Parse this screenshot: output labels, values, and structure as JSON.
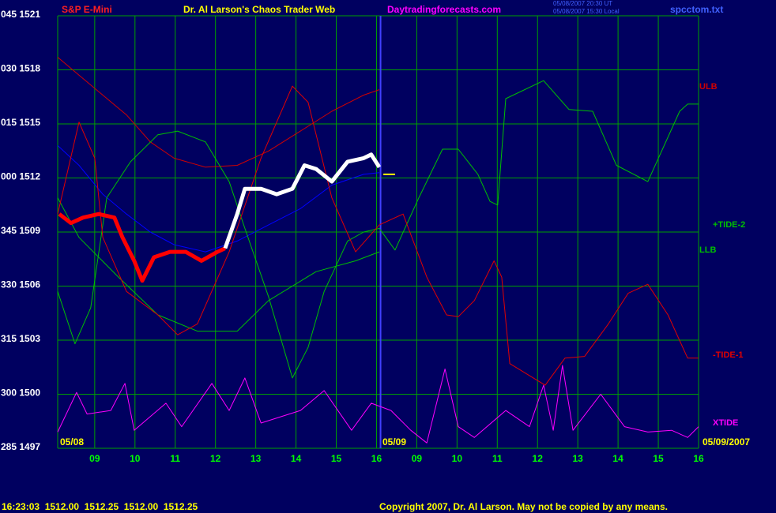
{
  "chart_data": {
    "type": "line",
    "symbol": "S&P E-Mini",
    "title": "Dr. Al Larson's Chaos Trader Web",
    "website": "Daytradingforecasts.com",
    "timestamps": [
      "05/08/2007 20:30 UT",
      "05/08/2007 15:30 Local"
    ],
    "file": "spcctom.txt",
    "status_line": "16:23:03  1512.00  1512.25  1512.00  1512.25",
    "copyright": "Copyright 2007, Dr. Al Larson. May not be copied by any means.",
    "date_labels": [
      "05/08",
      "05/09",
      "05/09/2007"
    ],
    "session_break": 16.1,
    "xlim": [
      8.08,
      24
    ],
    "xticks": [
      {
        "value": 9,
        "label": "09"
      },
      10,
      11,
      12,
      13,
      14,
      15,
      16,
      {
        "value": 17,
        "label": "09"
      },
      {
        "value": 18,
        "label": "10"
      },
      {
        "value": 19,
        "label": "11"
      },
      {
        "value": 20,
        "label": "12"
      },
      {
        "value": 21,
        "label": "13"
      },
      {
        "value": 22,
        "label": "14"
      },
      {
        "value": 23,
        "label": "15"
      },
      {
        "value": 24,
        "label": "16"
      }
    ],
    "ylim": [
      1497,
      1521
    ],
    "yticks": [
      {
        "value": 1521,
        "label": "045 1521"
      },
      {
        "value": 1518,
        "label": "030 1518"
      },
      {
        "value": 1515,
        "label": "015 1515"
      },
      {
        "value": 1512,
        "label": "000 1512"
      },
      {
        "value": 1509,
        "label": "345 1509"
      },
      {
        "value": 1506,
        "label": "330 1506"
      },
      {
        "value": 1503,
        "label": "315 1503"
      },
      {
        "value": 1500,
        "label": "300 1500"
      },
      {
        "value": 1497,
        "label": "285 1497"
      }
    ],
    "grid": true,
    "grid_color": "#00a000",
    "series": [
      {
        "name": "ULB",
        "color": "#d00000",
        "x": [
          8.08,
          8.61,
          9.2,
          9.79,
          10.38,
          10.97,
          11.75,
          12.54,
          13.32,
          14.11,
          14.89,
          15.68,
          16.07
        ],
        "values": [
          1518.7,
          1517.7,
          1516.6,
          1515.5,
          1514.0,
          1513.1,
          1512.6,
          1512.7,
          1513.5,
          1514.6,
          1515.7,
          1516.6,
          1516.9
        ]
      },
      {
        "color": "#0000ff",
        "x": [
          8.08,
          8.61,
          9.2,
          9.79,
          10.38,
          10.97,
          11.75,
          12.54,
          13.32,
          14.11,
          14.89,
          15.68,
          16.07
        ],
        "values": [
          1513.8,
          1512.7,
          1511.1,
          1510.0,
          1509.0,
          1508.3,
          1507.9,
          1508.5,
          1509.4,
          1510.3,
          1511.6,
          1512.2,
          1512.3
        ]
      },
      {
        "name": "LLB",
        "color": "#00c000",
        "x": [
          8.08,
          8.61,
          9.59,
          10.57,
          11.55,
          12.54,
          13.32,
          14.5,
          15.48,
          16.07
        ],
        "values": [
          1510.9,
          1508.7,
          1506.5,
          1504.4,
          1503.5,
          1503.5,
          1505.2,
          1506.8,
          1507.4,
          1507.9
        ]
      },
      {
        "name": "+TIDE-2",
        "color": "#00c000",
        "x": [
          8.08,
          8.51,
          8.9,
          9.3,
          9.89,
          10.57,
          11.06,
          11.75,
          12.34,
          12.73,
          13.32,
          13.91,
          14.3,
          14.7,
          15.28,
          15.68,
          16.07,
          16.46,
          17.05,
          17.64,
          18.03,
          18.52,
          18.82,
          19.01,
          19.21,
          20.15,
          20.78,
          21.37,
          21.96,
          22.74,
          23.53,
          23.73,
          24.0
        ],
        "values": [
          1505.7,
          1502.8,
          1504.8,
          1510.9,
          1512.9,
          1514.4,
          1514.6,
          1514.0,
          1511.8,
          1509.2,
          1505.4,
          1500.9,
          1502.6,
          1505.7,
          1508.5,
          1509.0,
          1509.2,
          1508.0,
          1510.9,
          1513.6,
          1513.6,
          1512.2,
          1510.7,
          1510.5,
          1516.4,
          1517.4,
          1515.8,
          1515.7,
          1512.7,
          1511.8,
          1515.7,
          1516.1,
          1516.1
        ]
      },
      {
        "name": "-TIDE-1",
        "color": "#e00000",
        "x": [
          8.08,
          8.61,
          9.0,
          9.2,
          9.79,
          10.57,
          11.06,
          11.55,
          12.34,
          13.13,
          13.91,
          14.3,
          14.89,
          15.48,
          16.07,
          16.66,
          17.25,
          17.74,
          18.03,
          18.43,
          18.92,
          19.11,
          19.31,
          20.19,
          20.68,
          21.17,
          21.76,
          22.25,
          22.74,
          23.24,
          23.73,
          24.0
        ],
        "values": [
          1510.0,
          1515.1,
          1513.1,
          1508.7,
          1505.7,
          1504.4,
          1503.3,
          1503.9,
          1507.9,
          1513.1,
          1517.1,
          1516.2,
          1510.9,
          1507.9,
          1509.4,
          1510.0,
          1506.5,
          1504.4,
          1504.3,
          1505.2,
          1507.4,
          1506.5,
          1501.7,
          1500.5,
          1502.0,
          1502.1,
          1503.9,
          1505.6,
          1506.1,
          1504.4,
          1502.0,
          1502.0
        ]
      },
      {
        "name": "XTIDE",
        "color": "#ff00ff",
        "x": [
          8.08,
          8.55,
          8.81,
          9.4,
          9.75,
          9.98,
          10.77,
          11.16,
          11.91,
          12.34,
          12.73,
          13.13,
          14.11,
          14.7,
          15.38,
          15.87,
          16.36,
          16.85,
          17.25,
          17.7,
          18.03,
          18.43,
          19.21,
          19.8,
          20.15,
          20.39,
          20.62,
          20.88,
          21.57,
          22.16,
          22.74,
          23.33,
          23.73,
          24.0
        ],
        "values": [
          1497.9,
          1500.1,
          1498.9,
          1499.1,
          1500.6,
          1498.0,
          1499.5,
          1498.2,
          1500.6,
          1499.1,
          1500.9,
          1498.4,
          1499.1,
          1500.2,
          1498.0,
          1499.5,
          1499.1,
          1498.0,
          1497.3,
          1501.4,
          1498.2,
          1497.6,
          1499.1,
          1498.2,
          1500.5,
          1498.0,
          1501.6,
          1498.0,
          1500.0,
          1498.2,
          1497.9,
          1498.0,
          1497.6,
          1498.2
        ]
      },
      {
        "color": "#ff0000",
        "line_width": 5,
        "x": [
          8.12,
          8.41,
          8.71,
          9.1,
          9.49,
          9.69,
          9.98,
          10.18,
          10.47,
          10.87,
          11.26,
          11.65,
          12.05,
          12.24
        ],
        "values": [
          1510.0,
          1509.5,
          1509.8,
          1510.0,
          1509.8,
          1508.7,
          1507.4,
          1506.3,
          1507.6,
          1507.9,
          1507.9,
          1507.4,
          1507.9,
          1508.1
        ]
      },
      {
        "color": "#ffffff",
        "line_width": 5,
        "x": [
          12.24,
          12.54,
          12.73,
          13.13,
          13.52,
          13.91,
          14.21,
          14.5,
          14.89,
          15.28,
          15.68,
          15.87,
          16.07
        ],
        "values": [
          1508.1,
          1510.0,
          1511.4,
          1511.4,
          1511.1,
          1511.4,
          1512.7,
          1512.5,
          1511.8,
          1512.9,
          1513.1,
          1513.3,
          1512.6
        ]
      },
      {
        "color": "#ffff00",
        "line_width": 2,
        "x": [
          16.17,
          16.46
        ],
        "values": [
          1512.2,
          1512.2
        ]
      }
    ]
  }
}
